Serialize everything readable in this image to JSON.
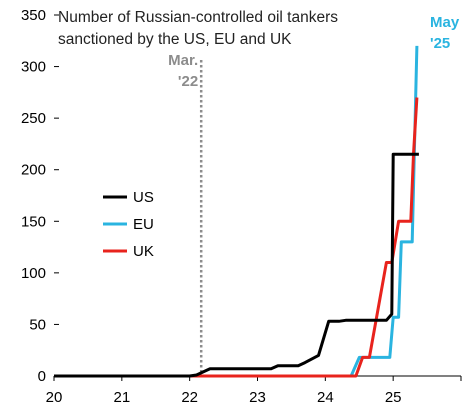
{
  "chart_data": {
    "type": "line",
    "title_lines": [
      "Number of Russian-controlled oil tankers",
      "sanctioned by the US, EU and UK"
    ],
    "xlabel": "",
    "ylabel": "",
    "xlim": [
      20,
      26
    ],
    "ylim": [
      0,
      350
    ],
    "x_ticks": [
      20,
      21,
      22,
      23,
      24,
      25
    ],
    "x_tick_labels": [
      "20",
      "21",
      "22",
      "23",
      "24",
      "25"
    ],
    "y_ticks": [
      0,
      50,
      100,
      150,
      200,
      250,
      300,
      350
    ],
    "y_tick_labels": [
      "0",
      "50",
      "100",
      "150",
      "200",
      "250",
      "300",
      "350"
    ],
    "grid": false,
    "legend_position": "center-left",
    "annotations": [
      {
        "id": "mar22",
        "lines": [
          "Mar.",
          "'22"
        ],
        "x": 22.17,
        "color": "#8c8c8c",
        "line_style": "dotted"
      },
      {
        "id": "may25",
        "lines": [
          "May",
          "'25"
        ],
        "x": 25.37,
        "color": "#2ab4e0"
      }
    ],
    "series": [
      {
        "name": "US",
        "color": "#000000",
        "points": [
          [
            20,
            0
          ],
          [
            22.0,
            0
          ],
          [
            22.1,
            1
          ],
          [
            22.3,
            7
          ],
          [
            23.2,
            7
          ],
          [
            23.3,
            10
          ],
          [
            23.6,
            10
          ],
          [
            23.7,
            13
          ],
          [
            23.9,
            20
          ],
          [
            24.05,
            53
          ],
          [
            24.2,
            53
          ],
          [
            24.3,
            54
          ],
          [
            24.9,
            54
          ],
          [
            24.98,
            60
          ],
          [
            25.0,
            215
          ],
          [
            25.38,
            215
          ]
        ]
      },
      {
        "name": "EU",
        "color": "#2ab4e0",
        "points": [
          [
            20,
            0
          ],
          [
            24.38,
            0
          ],
          [
            24.5,
            18
          ],
          [
            24.95,
            18
          ],
          [
            25.0,
            57
          ],
          [
            25.08,
            57
          ],
          [
            25.12,
            130
          ],
          [
            25.28,
            130
          ],
          [
            25.35,
            320
          ]
        ]
      },
      {
        "name": "UK",
        "color": "#e8231d",
        "points": [
          [
            20,
            0
          ],
          [
            24.45,
            0
          ],
          [
            24.55,
            18
          ],
          [
            24.65,
            18
          ],
          [
            24.9,
            110
          ],
          [
            24.98,
            110
          ],
          [
            25.08,
            150
          ],
          [
            25.26,
            150
          ],
          [
            25.3,
            215
          ],
          [
            25.35,
            270
          ]
        ]
      }
    ]
  }
}
